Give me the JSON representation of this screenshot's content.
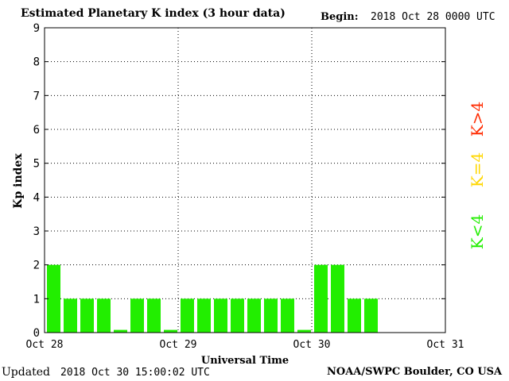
{
  "header": {
    "title": "Estimated Planetary K index (3 hour data)",
    "begin_label": "Begin:",
    "begin_value": "2018 Oct 28 0000 UTC"
  },
  "footer": {
    "updated_label": "Updated",
    "updated_value": "2018 Oct 30 15:00:02 UTC",
    "source": "NOAA/SWPC Boulder, CO USA"
  },
  "legend": {
    "k_gt_4": {
      "label": "K>4",
      "color": "#ff2a00"
    },
    "k_eq_4": {
      "label": "K=4",
      "color": "#ffd700"
    },
    "k_lt_4": {
      "label": "K<4",
      "color": "#22ee00"
    }
  },
  "chart_data": {
    "type": "bar",
    "title": "Estimated Planetary K index (3 hour data)",
    "xlabel": "Universal Time",
    "ylabel": "Kp index",
    "ylim": [
      0,
      9
    ],
    "yticks": [
      0,
      1,
      2,
      3,
      4,
      5,
      6,
      7,
      8,
      9
    ],
    "xlim": [
      0,
      72
    ],
    "xticks": [
      {
        "label": "Oct 28",
        "hour": 0
      },
      {
        "label": "Oct 29",
        "hour": 24
      },
      {
        "label": "Oct 30",
        "hour": 48
      },
      {
        "label": "Oct 31",
        "hour": 72
      }
    ],
    "grid": true,
    "bar_color": "#22ee00",
    "series": [
      {
        "hour_start": [
          0,
          3,
          6,
          9,
          12,
          15,
          18,
          21,
          24,
          27,
          30,
          33,
          36,
          39,
          42,
          45,
          48,
          51,
          54,
          57
        ],
        "values": [
          2,
          1,
          1,
          1,
          0,
          1,
          1,
          0,
          1,
          1,
          1,
          1,
          1,
          1,
          1,
          0,
          2,
          2,
          1,
          1
        ]
      }
    ]
  }
}
